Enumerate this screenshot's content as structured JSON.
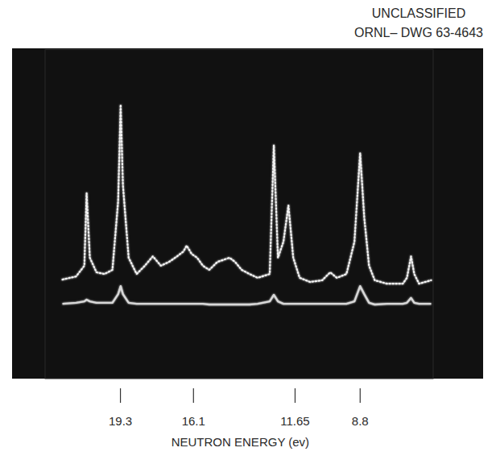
{
  "chart_data": {
    "type": "line",
    "annotations": [
      "UNCLASSIFIED",
      "ORNL– DWG 63-4643"
    ],
    "x_label": "NEUTRON ENERGY (ev)",
    "x": [
      21.84,
      21.24,
      20.88,
      20.78,
      20.64,
      20.35,
      20.0,
      19.65,
      19.4,
      19.29,
      19.19,
      18.94,
      18.59,
      18.23,
      17.88,
      17.53,
      17.17,
      16.82,
      16.54,
      16.4,
      16.18,
      15.94,
      15.69,
      15.41,
      15.05,
      14.52,
      14.28,
      13.99,
      13.64,
      13.29,
      12.76,
      12.58,
      12.4,
      12.16,
      11.94,
      11.73,
      11.45,
      10.99,
      10.46,
      10.11,
      9.82,
      9.4,
      9.05,
      8.8,
      8.62,
      8.41,
      8.16,
      7.63,
      6.93,
      6.75,
      6.57,
      6.43,
      6.22,
      5.69
    ],
    "series": [
      {
        "color": "#f2f2f2",
        "line_style": "dotted",
        "values": [
          28.6,
          29.5,
          32.6,
          53.5,
          34.9,
          30.7,
          30.2,
          31.4,
          51.2,
          79.1,
          55.8,
          34.9,
          30.2,
          32.6,
          35.3,
          32.6,
          33.7,
          35.3,
          36.7,
          38.4,
          36.0,
          34.9,
          32.6,
          31.4,
          33.7,
          34.9,
          33.7,
          31.4,
          30.2,
          29.1,
          30.2,
          67.4,
          34.9,
          39.5,
          50.0,
          34.9,
          29.1,
          27.9,
          28.4,
          30.7,
          29.1,
          30.2,
          39.5,
          65.1,
          46.5,
          32.6,
          28.4,
          27.4,
          27.4,
          29.1,
          35.3,
          30.2,
          27.4,
          28.4
        ]
      },
      {
        "color": "#d8d8d8",
        "line_style": "solid",
        "values": [
          21.6,
          21.9,
          22.3,
          22.8,
          22.3,
          21.9,
          21.9,
          21.9,
          24.4,
          26.7,
          24.4,
          21.9,
          21.6,
          21.6,
          21.6,
          21.6,
          21.6,
          21.6,
          21.6,
          21.6,
          21.6,
          21.6,
          21.6,
          21.4,
          21.4,
          21.4,
          21.4,
          21.4,
          21.4,
          21.6,
          22.3,
          24.2,
          22.3,
          21.6,
          21.6,
          21.6,
          21.6,
          21.6,
          21.6,
          21.6,
          21.6,
          21.6,
          22.3,
          26.7,
          24.4,
          21.9,
          21.4,
          21.6,
          21.6,
          21.9,
          23.3,
          21.9,
          21.6,
          21.6
        ]
      }
    ],
    "xlim": [
      22.6,
      5.6
    ],
    "xticks": [
      19.3,
      16.1,
      11.65,
      8.8
    ],
    "ylim": [
      0,
      95
    ],
    "tick_labels": "x",
    "grid": false
  }
}
